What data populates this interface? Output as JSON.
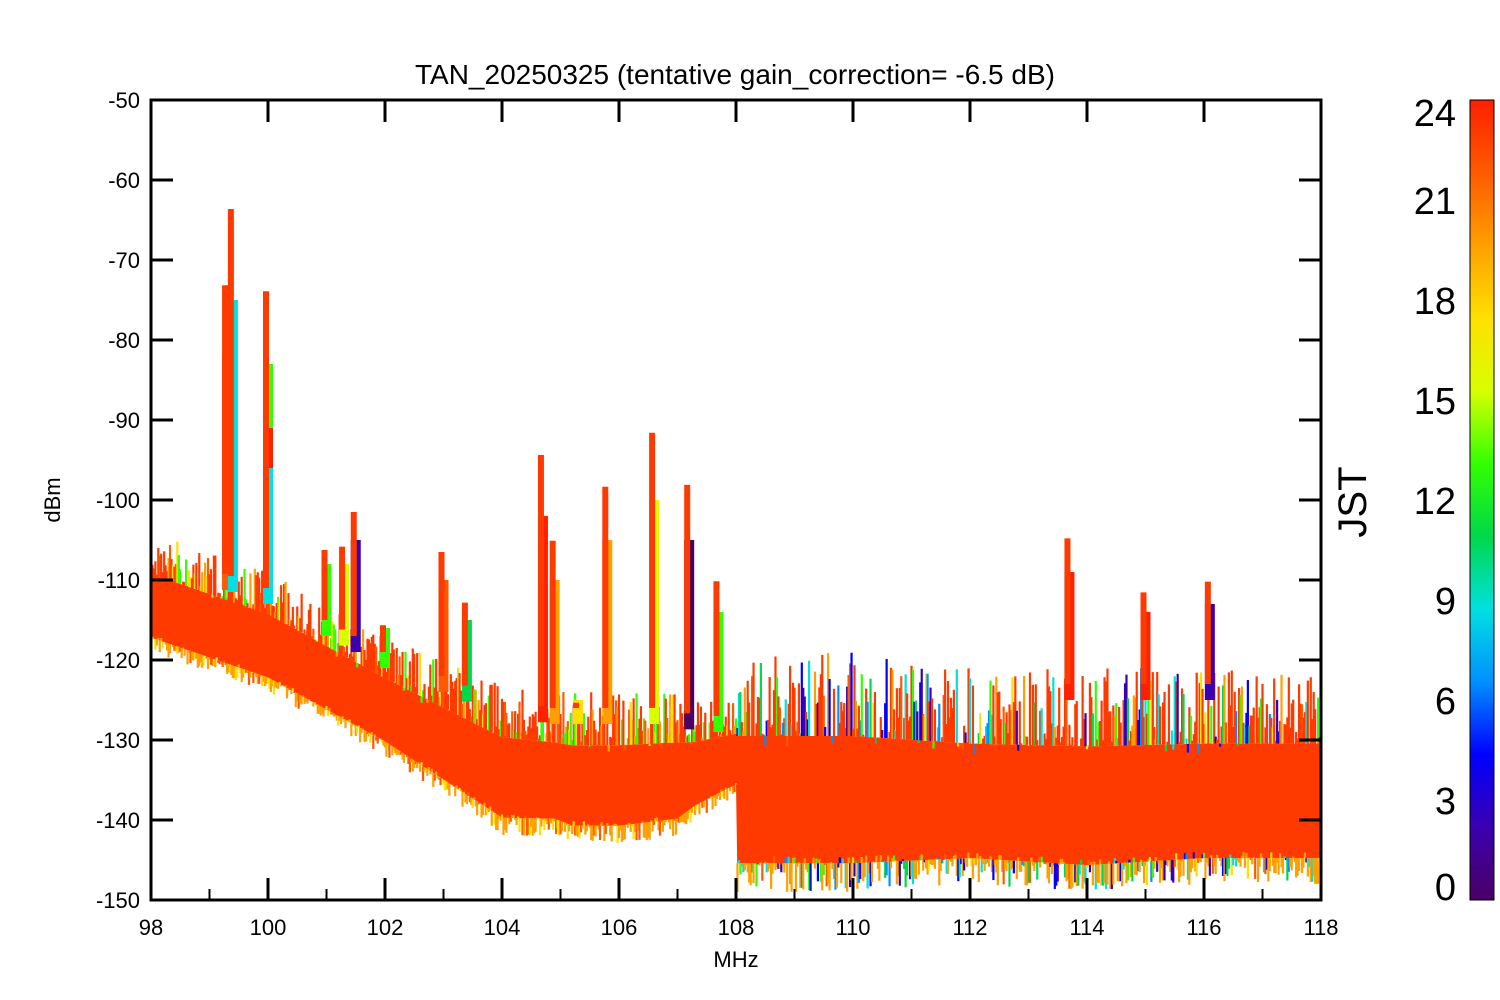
{
  "chart_data": {
    "type": "scatter",
    "title": "TAN_20250325 (tentative gain_correction= -6.5 dB)",
    "xlabel": "MHz",
    "ylabel": "dBm",
    "xlim": [
      98,
      118
    ],
    "ylim": [
      -150,
      -50
    ],
    "x_ticks": [
      98,
      100,
      102,
      104,
      106,
      108,
      110,
      112,
      114,
      116,
      118
    ],
    "y_ticks": [
      -50,
      -60,
      -70,
      -80,
      -90,
      -100,
      -110,
      -120,
      -130,
      -140,
      -150
    ],
    "colorbar": {
      "label": "JST",
      "range": [
        0,
        24
      ],
      "ticks": [
        0,
        3,
        6,
        9,
        12,
        15,
        18,
        21,
        24
      ],
      "colormap": "rainbow",
      "stops": [
        "#4b0064",
        "#3a00b0",
        "#0000ff",
        "#0090ff",
        "#00e0e0",
        "#00d84a",
        "#33ff00",
        "#d8ff00",
        "#ffe000",
        "#ffa000",
        "#ff5a00",
        "#ff2000"
      ]
    },
    "noise_floor": [
      {
        "x": 98,
        "y_low": -119,
        "y_high": -104
      },
      {
        "x": 100,
        "y_low": -124,
        "y_high": -109
      },
      {
        "x": 102,
        "y_low": -132,
        "y_high": -117
      },
      {
        "x": 104,
        "y_low": -142,
        "y_high": -123
      },
      {
        "x": 104.9,
        "y_low": -142,
        "y_high": -124
      },
      {
        "x": 105.2,
        "y_low": -143,
        "y_high": -124
      },
      {
        "x": 106,
        "y_low": -143,
        "y_high": -124
      },
      {
        "x": 107,
        "y_low": -142,
        "y_high": -124
      },
      {
        "x": 107.3,
        "y_low": -140,
        "y_high": -125
      },
      {
        "x": 108,
        "y_low": -137,
        "y_high": -125
      },
      {
        "x": 108.01,
        "y_low": -149,
        "y_high": -119
      },
      {
        "x": 110,
        "y_low": -149,
        "y_high": -119
      },
      {
        "x": 112,
        "y_low": -148,
        "y_high": -121
      },
      {
        "x": 114,
        "y_low": -149,
        "y_high": -121
      },
      {
        "x": 116,
        "y_low": -148,
        "y_high": -121
      },
      {
        "x": 118,
        "y_low": -148,
        "y_high": -121
      }
    ],
    "signals": [
      {
        "freq_mhz": 99.3,
        "peak_dbm": -82,
        "jst": 21
      },
      {
        "freq_mhz": 99.4,
        "peak_dbm": -75,
        "jst": 9
      },
      {
        "freq_mhz": 100.0,
        "peak_dbm": -83,
        "jst": 14
      },
      {
        "freq_mhz": 100.0,
        "peak_dbm": -91,
        "jst": 23
      },
      {
        "freq_mhz": 100.0,
        "peak_dbm": -96,
        "jst": 8
      },
      {
        "freq_mhz": 101.0,
        "peak_dbm": -108,
        "jst": 14
      },
      {
        "freq_mhz": 101.3,
        "peak_dbm": -108,
        "jst": 16
      },
      {
        "freq_mhz": 101.5,
        "peak_dbm": -105,
        "jst": 2
      },
      {
        "freq_mhz": 102.0,
        "peak_dbm": -116,
        "jst": 14
      },
      {
        "freq_mhz": 103.0,
        "peak_dbm": -110,
        "jst": 21
      },
      {
        "freq_mhz": 103.4,
        "peak_dbm": -115,
        "jst": 10
      },
      {
        "freq_mhz": 104.7,
        "peak_dbm": -102,
        "jst": 23
      },
      {
        "freq_mhz": 104.9,
        "peak_dbm": -110,
        "jst": 20
      },
      {
        "freq_mhz": 105.3,
        "peak_dbm": -125,
        "jst": 17
      },
      {
        "freq_mhz": 105.8,
        "peak_dbm": -105,
        "jst": 20
      },
      {
        "freq_mhz": 106.6,
        "peak_dbm": -100,
        "jst": 15
      },
      {
        "freq_mhz": 107.2,
        "peak_dbm": -105,
        "jst": 1
      },
      {
        "freq_mhz": 107.7,
        "peak_dbm": -114,
        "jst": 12
      },
      {
        "freq_mhz": 113.7,
        "peak_dbm": -109,
        "jst": 23
      },
      {
        "freq_mhz": 115.0,
        "peak_dbm": -114,
        "jst": 23
      },
      {
        "freq_mhz": 116.1,
        "peak_dbm": -113,
        "jst": 2
      }
    ]
  }
}
